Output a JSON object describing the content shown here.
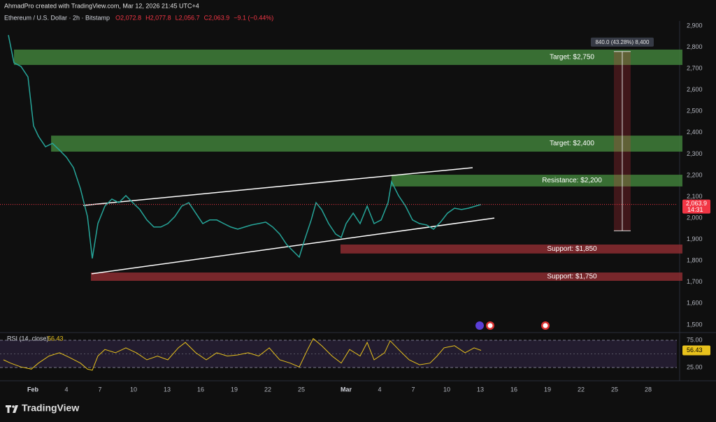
{
  "header": {
    "attribution": "AhmadPro created with TradingView.com, Mar 12, 2026 21:45 UTC+4",
    "symbol": "Ethereum / U.S. Dollar · 2h · Bitstamp",
    "ohlc": [
      "O2,072.8",
      "H2,077.8",
      "L2,056.7",
      "C2,063.9",
      "−9.1 (−0.44%)"
    ]
  },
  "chart_data": [
    {
      "type": "line",
      "color": "#26a69a",
      "x": [
        -2.19,
        -1.69,
        -1.06,
        -0.44,
        0.06,
        0.5,
        1.13,
        1.75,
        2.38,
        3,
        3.63,
        4.25,
        4.88,
        5.31,
        5.81,
        6.44,
        7.06,
        7.69,
        8.31,
        8.94,
        9.56,
        10.19,
        10.81,
        11.44,
        12.06,
        12.69,
        13.31,
        13.94,
        14.56,
        15.19,
        15.81,
        16.44,
        17.06,
        17.69,
        18.31,
        18.94,
        19.56,
        20.19,
        20.81,
        21.44,
        22.06,
        22.69,
        23.31,
        23.81,
        24.25,
        24.88,
        25.31,
        25.81,
        26.44,
        27.06,
        27.56,
        28,
        28.63,
        29.25,
        29.88,
        30.5,
        31.13,
        31.75,
        32.06,
        32.69,
        33.31,
        33.94,
        34.56,
        35.19,
        35.81,
        36.44,
        37.06,
        37.69,
        38.31,
        38.94,
        39.56,
        40.06
      ],
      "values": [
        2857,
        2727,
        2710,
        2661,
        2432,
        2383,
        2334,
        2350,
        2318,
        2285,
        2236,
        2138,
        2007,
        1811,
        1974,
        2056,
        2089,
        2072,
        2105,
        2072,
        2040,
        1991,
        1958,
        1958,
        1974,
        2007,
        2056,
        2072,
        2023,
        1974,
        1991,
        1991,
        1974,
        1958,
        1948,
        1958,
        1968,
        1974,
        1981,
        1958,
        1925,
        1876,
        1843,
        1817,
        1892,
        1991,
        2072,
        2040,
        1974,
        1925,
        1909,
        1974,
        2023,
        1974,
        2056,
        1974,
        1991,
        2072,
        2170,
        2105,
        2056,
        1991,
        1974,
        1968,
        1948,
        1981,
        2023,
        2046,
        2040,
        2046,
        2056,
        2063.9
      ],
      "xlim": [
        -2.9375,
        57.5625
      ],
      "ylim": [
        1467,
        2923
      ],
      "yticks": [
        {
          "value": 1500,
          "label": "1,500"
        },
        {
          "value": 1600,
          "label": "1,600"
        },
        {
          "value": 1700,
          "label": "1,700"
        },
        {
          "value": 1800,
          "label": "1,800"
        },
        {
          "value": 1900,
          "label": "1,900"
        },
        {
          "value": 2000,
          "label": "2,000"
        },
        {
          "value": 2100,
          "label": "2,100"
        },
        {
          "value": 2200,
          "label": "2,200"
        },
        {
          "value": 2300,
          "label": "2,300"
        },
        {
          "value": 2400,
          "label": "2,400"
        },
        {
          "value": 2500,
          "label": "2,500"
        },
        {
          "value": 2600,
          "label": "2,600"
        },
        {
          "value": 2700,
          "label": "2,700"
        },
        {
          "value": 2800,
          "label": "2,800"
        },
        {
          "value": 2900,
          "label": "2,900"
        }
      ],
      "last_price": {
        "value": 2063.9,
        "label": "2,063.9",
        "countdown": "14:31"
      },
      "zones": [
        {
          "label": "Target: $2,750",
          "top": 2789,
          "bottom": 2717,
          "start": -1.69,
          "color": "#3f7f3a"
        },
        {
          "label": "Target: $2,400",
          "top": 2386,
          "bottom": 2311,
          "start": 1.63,
          "color": "#3f7f3a"
        },
        {
          "label": "Resistance: $2,200",
          "top": 2203,
          "bottom": 2148,
          "start": 32.06,
          "color": "#3f7f3a"
        },
        {
          "label": "Support: $1,850",
          "top": 1876,
          "bottom": 1834,
          "start": 27.5,
          "color": "#8b2b30"
        },
        {
          "label": "Support: $1,750",
          "top": 1745,
          "bottom": 1706,
          "start": 5.19,
          "color": "#8b2b30"
        }
      ],
      "trendlines": [
        {
          "x": [
            4.5,
            39.31
          ],
          "values": [
            2059,
            2236
          ]
        },
        {
          "x": [
            5.25,
            41.25
          ],
          "values": [
            1739,
            2000
          ]
        }
      ],
      "measure": {
        "x": 52.06,
        "values": [
          1940,
          2780
        ],
        "label": "840.0 (43.28%) 8,400"
      }
    },
    {
      "type": "line",
      "title": "RSI (14, close)",
      "color": "#e8c21c",
      "x": [
        -2.63,
        -2,
        -1.06,
        -0.13,
        0.5,
        1.44,
        2.38,
        3.31,
        4.25,
        4.88,
        5.31,
        5.81,
        6.44,
        7.38,
        8.31,
        9.25,
        10.19,
        11.13,
        12.06,
        13,
        13.63,
        14.56,
        15.5,
        16.44,
        17.38,
        18.31,
        19.25,
        20.19,
        21.13,
        22.06,
        23,
        23.81,
        24.56,
        25.06,
        25.81,
        26.75,
        27.56,
        28.31,
        29.25,
        29.88,
        30.5,
        31.44,
        31.94,
        32.69,
        33.63,
        34.56,
        35.5,
        36.13,
        36.75,
        37.69,
        38.63,
        39.44,
        40.06
      ],
      "values": [
        39,
        33,
        26,
        22,
        33,
        46,
        52,
        43,
        33,
        22,
        20,
        46,
        58,
        52,
        61,
        52,
        39,
        46,
        39,
        61,
        71,
        52,
        39,
        52,
        46,
        48,
        52,
        46,
        61,
        39,
        33,
        26,
        58,
        78,
        65,
        46,
        33,
        58,
        46,
        71,
        39,
        52,
        74,
        58,
        39,
        30,
        33,
        46,
        61,
        65,
        52,
        61,
        56.43
      ],
      "xlim": [
        -2.9375,
        57.5625
      ],
      "ylim": [
        7,
        86.5
      ],
      "yticks": [
        {
          "value": 75,
          "label": "75.00"
        },
        {
          "value": 25,
          "label": "25.00"
        }
      ],
      "levels": [
        50
      ],
      "xticks": [
        {
          "value": 0,
          "label": "Feb"
        },
        {
          "value": 3,
          "label": "4"
        },
        {
          "value": 6,
          "label": "7"
        },
        {
          "value": 9,
          "label": "10"
        },
        {
          "value": 12,
          "label": "13"
        },
        {
          "value": 15,
          "label": "16"
        },
        {
          "value": 18,
          "label": "19"
        },
        {
          "value": 21,
          "label": "22"
        },
        {
          "value": 24,
          "label": "25"
        },
        {
          "value": 28,
          "label": "Mar"
        },
        {
          "value": 31,
          "label": "4"
        },
        {
          "value": 34,
          "label": "7"
        },
        {
          "value": 37,
          "label": "10"
        },
        {
          "value": 40,
          "label": "13"
        },
        {
          "value": 43,
          "label": "16"
        },
        {
          "value": 46,
          "label": "19"
        },
        {
          "value": 49,
          "label": "22"
        },
        {
          "value": 52,
          "label": "25"
        },
        {
          "value": 55,
          "label": "28"
        }
      ]
    }
  ],
  "brand": "TradingView"
}
